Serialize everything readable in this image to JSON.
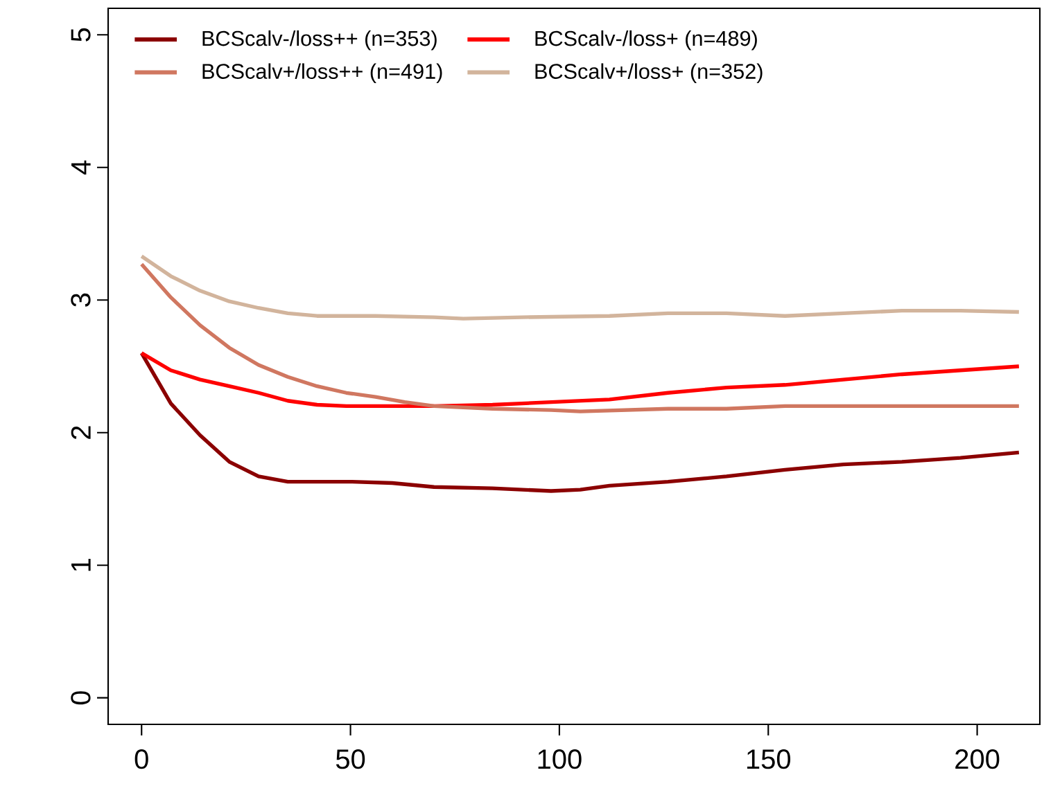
{
  "chart_data": {
    "type": "line",
    "xlim": [
      -8,
      215
    ],
    "ylim": [
      -0.2,
      5.2
    ],
    "xticks": [
      0,
      50,
      100,
      150,
      200
    ],
    "yticks": [
      0,
      1,
      2,
      3,
      4,
      5
    ],
    "legend": "top left",
    "series": [
      {
        "name": "BCScalv-/loss++ (n=353)",
        "color": "#8b0000",
        "x": [
          0,
          7,
          14,
          21,
          28,
          35,
          50,
          60,
          70,
          84,
          98,
          105,
          112,
          126,
          140,
          154,
          168,
          182,
          196,
          210
        ],
        "values": [
          2.6,
          2.22,
          1.98,
          1.78,
          1.67,
          1.63,
          1.63,
          1.62,
          1.59,
          1.58,
          1.56,
          1.57,
          1.6,
          1.63,
          1.67,
          1.72,
          1.76,
          1.78,
          1.81,
          1.85
        ]
      },
      {
        "name": "BCScalv-/loss+ (n=489)",
        "color": "#ff0000",
        "x": [
          0,
          7,
          14,
          21,
          28,
          35,
          42,
          49,
          70,
          84,
          98,
          112,
          126,
          140,
          154,
          168,
          182,
          196,
          210
        ],
        "values": [
          2.6,
          2.47,
          2.4,
          2.35,
          2.3,
          2.24,
          2.21,
          2.2,
          2.2,
          2.21,
          2.23,
          2.25,
          2.3,
          2.34,
          2.36,
          2.4,
          2.44,
          2.47,
          2.5
        ]
      },
      {
        "name": "BCScalv+/loss++ (n=491)",
        "color": "#d07760",
        "x": [
          0,
          7,
          14,
          21,
          28,
          35,
          42,
          49,
          56,
          63,
          70,
          84,
          98,
          105,
          126,
          140,
          154,
          168,
          196,
          210
        ],
        "values": [
          3.27,
          3.02,
          2.81,
          2.64,
          2.51,
          2.42,
          2.35,
          2.3,
          2.27,
          2.23,
          2.2,
          2.18,
          2.17,
          2.16,
          2.18,
          2.18,
          2.2,
          2.2,
          2.2,
          2.2
        ]
      },
      {
        "name": "BCScalv+/loss+ (n=352)",
        "color": "#d2b49c",
        "x": [
          0,
          7,
          14,
          21,
          28,
          35,
          42,
          56,
          70,
          77,
          91,
          112,
          126,
          140,
          154,
          168,
          182,
          196,
          210
        ],
        "values": [
          3.33,
          3.18,
          3.07,
          2.99,
          2.94,
          2.9,
          2.88,
          2.88,
          2.87,
          2.86,
          2.87,
          2.88,
          2.9,
          2.9,
          2.88,
          2.9,
          2.92,
          2.92,
          2.91
        ]
      }
    ]
  }
}
